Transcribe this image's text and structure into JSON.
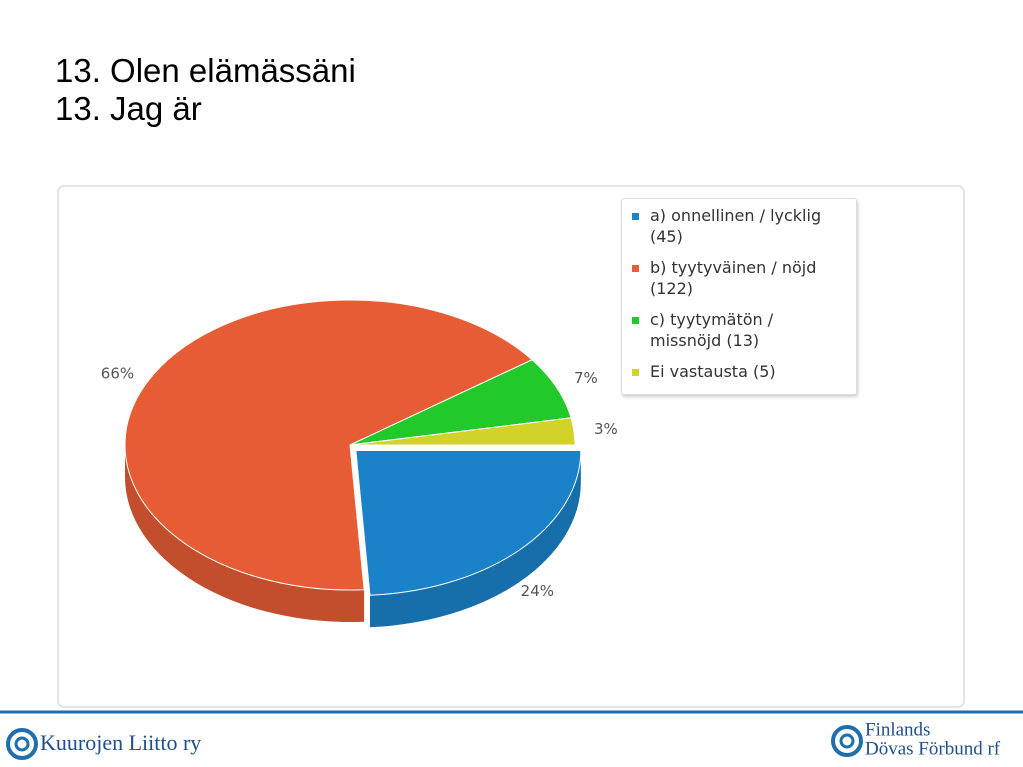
{
  "slide": {
    "title_lines": [
      "13. Olen elämässäni",
      "13. Jag är"
    ]
  },
  "chart_data": {
    "type": "pie",
    "categories": [
      "a) onnellinen / lycklig (45)",
      "b) tyytyväinen / nöjd (122)",
      "c) tyytymätön / missnöjd (13)",
      "Ei vastausta (5)"
    ],
    "values": [
      24,
      66,
      7,
      3
    ],
    "value_labels": [
      "24%",
      "66%",
      "7%",
      "3%"
    ],
    "colors": [
      "#1a82c8",
      "#e55c35",
      "#22c92a",
      "#d2d22a"
    ],
    "legend": "top-right"
  },
  "footer": {
    "left": "Kuurojen Liitto ry",
    "right_lines": [
      "Finlands",
      "Dövas Förbund rf"
    ]
  }
}
